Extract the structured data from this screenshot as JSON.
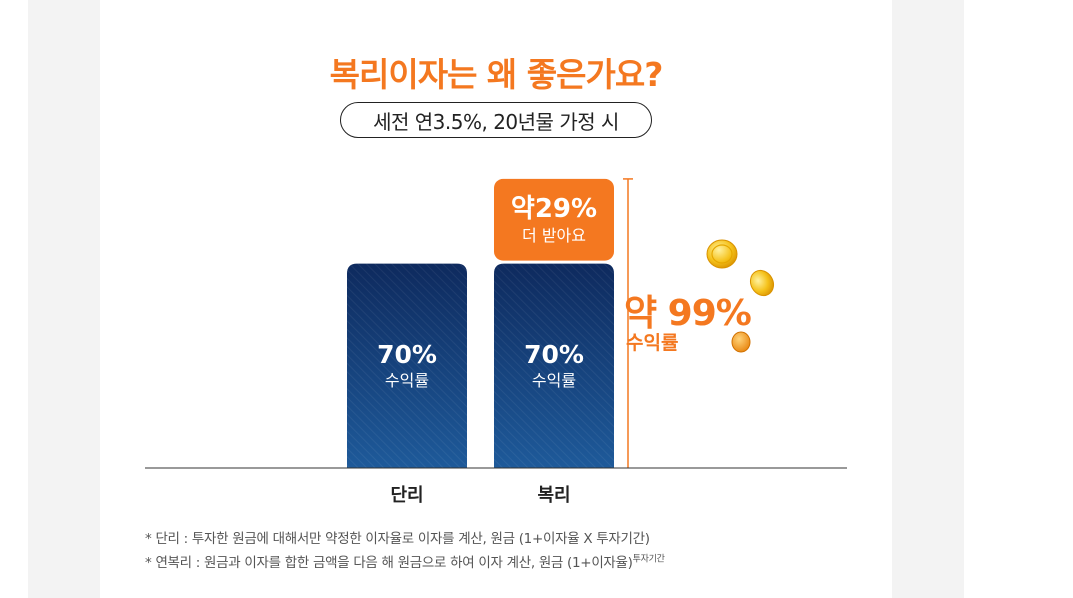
{
  "title": "복리이자는 왜 좋은가요?",
  "subtitle": "세전 연3.5%, 20년물 가정 시",
  "chart_data": {
    "type": "bar",
    "categories": [
      "단리",
      "복리"
    ],
    "series": [
      {
        "values": [
          70,
          70
        ]
      },
      {
        "values": [
          0,
          29
        ]
      }
    ],
    "data_labels": [
      {
        "value": "70%",
        "label": "수익률"
      },
      {
        "value": "70%",
        "label": "수익률"
      }
    ],
    "extra_label": {
      "value": "약29%",
      "label": "더 받아요"
    },
    "total_label": {
      "value": "약 99%",
      "label": "수익률"
    },
    "ylim": [
      0,
      100
    ]
  },
  "notes": {
    "note1": "* 단리 : 투자한 원금에 대해서만 약정한 이자율로 이자를 계산, 원금 (1+이자율 X 투자기간)",
    "note2_main": "* 연복리 : 원금과 이자를 합한 금액을 다음 해 원금으로 하여 이자 계산, 원금 (1+이자율)",
    "note2_sup": "투자기간"
  },
  "colors": {
    "accent": "#f47820",
    "bar_dark": "#0e2a5e",
    "bar_light": "#1e5a9a"
  }
}
